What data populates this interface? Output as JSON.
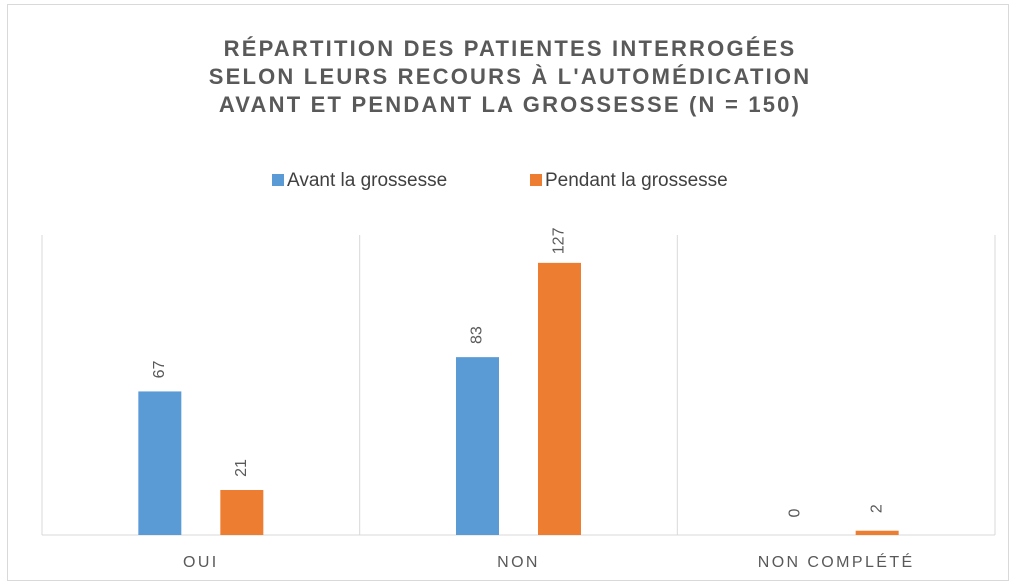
{
  "chart_data": {
    "type": "bar",
    "title": [
      "RÉPARTITION DES PATIENTES INTERROGÉES",
      "SELON LEURS RECOURS À L'AUTOMÉDICATION",
      "AVANT ET PENDANT LA GROSSESSE (N = 150)"
    ],
    "categories": [
      "OUI",
      "NON",
      "NON COMPLÉTÉ"
    ],
    "series": [
      {
        "name": "Avant la grossesse",
        "color": "#5b9bd5",
        "values": [
          67,
          83,
          0
        ]
      },
      {
        "name": "Pendant la grossesse",
        "color": "#ed7d31",
        "values": [
          21,
          127,
          2
        ]
      }
    ],
    "ylim": [
      0,
      140
    ],
    "legend": "top"
  }
}
